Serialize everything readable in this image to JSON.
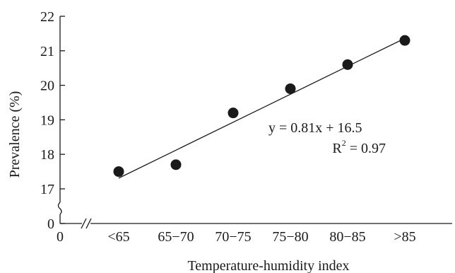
{
  "chart_data": {
    "type": "scatter",
    "title": "",
    "xlabel": "Temperature-humidity index",
    "ylabel": "Prevalence (%)",
    "x_zero_label": "0",
    "categories": [
      "<65",
      "65−70",
      "70−75",
      "75−80",
      "80−85",
      ">85"
    ],
    "values": [
      17.5,
      17.7,
      19.2,
      19.9,
      20.6,
      21.3
    ],
    "yticks": [
      0,
      17,
      18,
      19,
      20,
      21,
      22
    ],
    "ylim": [
      17,
      22
    ],
    "y_axis_break": true,
    "x_axis_break": true,
    "grid": false,
    "trendline": {
      "slope": 0.81,
      "intercept": 16.5,
      "equation": "y = 0.81x + 16.5",
      "r2_label": "R",
      "r2_sup": "2",
      "r2_value": " = 0.97"
    }
  }
}
